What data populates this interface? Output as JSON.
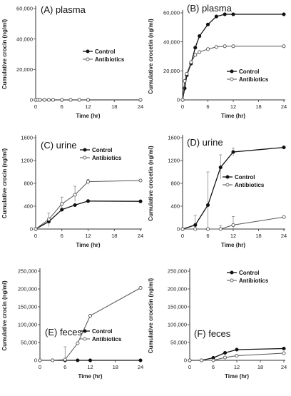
{
  "chart_data": [
    {
      "type": "line",
      "panel_title": "(A) plasma",
      "xlabel": "Time (hr)",
      "ylabel": "Cumulative crocin (ng/ml)",
      "xlim": [
        0,
        24
      ],
      "ylim": [
        0,
        60000
      ],
      "xticks": [
        0,
        6,
        12,
        18,
        24
      ],
      "yticks": [
        0,
        20000,
        40000,
        60000
      ],
      "ytick_labels": [
        "0",
        "20,000",
        "40,000",
        "60,000"
      ],
      "x": [
        0,
        0.5,
        1,
        2,
        3,
        4,
        6,
        8,
        10,
        12,
        24
      ],
      "series": [
        {
          "name": "Control",
          "marker": "filled",
          "values": [
            0,
            0,
            0,
            0,
            0,
            0,
            0,
            0,
            0,
            0,
            0
          ]
        },
        {
          "name": "Antibiotics",
          "marker": "open",
          "values": [
            0,
            0,
            0,
            0,
            0,
            0,
            0,
            0,
            0,
            0,
            0
          ]
        }
      ],
      "errors": [],
      "legend": "middle-right"
    },
    {
      "type": "line",
      "panel_title": "(B) plasma",
      "xlabel": "Time (hr)",
      "ylabel": "Cumulative crocetin (ng/ml)",
      "xlim": [
        0,
        24
      ],
      "ylim": [
        0,
        60000
      ],
      "xticks": [
        0,
        6,
        12,
        18,
        24
      ],
      "yticks": [
        0,
        20000,
        40000,
        60000
      ],
      "ytick_labels": [
        "0",
        "20,000",
        "40,000",
        "60,000"
      ],
      "x": [
        0,
        0.5,
        1,
        2,
        3,
        4,
        6,
        8,
        10,
        12,
        24
      ],
      "series": [
        {
          "name": "Control",
          "marker": "filled",
          "values": [
            0,
            8000,
            17000,
            25000,
            36000,
            44000,
            52000,
            57500,
            59000,
            59000,
            59000
          ]
        },
        {
          "name": "Antibiotics",
          "marker": "open",
          "values": [
            0,
            13000,
            18000,
            26000,
            31000,
            33000,
            35000,
            36500,
            37000,
            37000,
            37000
          ]
        }
      ],
      "errors": [],
      "legend": "right"
    },
    {
      "type": "line",
      "panel_title": "(C) urine",
      "xlabel": "Time (hr)",
      "ylabel": "Cumulative crocin (ng/ml)",
      "xlim": [
        0,
        24
      ],
      "ylim": [
        0,
        1600
      ],
      "xticks": [
        0,
        6,
        12,
        18,
        24
      ],
      "yticks": [
        0,
        400,
        800,
        1200,
        1600
      ],
      "ytick_labels": [
        "0",
        "400",
        "800",
        "1200",
        "1600"
      ],
      "x": [
        0,
        3,
        6,
        9,
        12,
        24
      ],
      "series": [
        {
          "name": "Control",
          "marker": "filled",
          "values": [
            0,
            130,
            340,
            420,
            490,
            485
          ]
        },
        {
          "name": "Antibiotics",
          "marker": "open",
          "values": [
            0,
            170,
            440,
            600,
            830,
            850
          ]
        }
      ],
      "errors": [
        {
          "x": 3,
          "low": 40,
          "high": 280
        },
        {
          "x": 6,
          "low": 300,
          "high": 560
        },
        {
          "x": 9,
          "low": 480,
          "high": 750
        },
        {
          "x": 12,
          "low": 780,
          "high": 870
        }
      ],
      "legend": "top-right"
    },
    {
      "type": "line",
      "panel_title": "(D) urine",
      "xlabel": "Time (hr)",
      "ylabel": "Cumulative crocetin (ng/ml)",
      "xlim": [
        0,
        24
      ],
      "ylim": [
        0,
        1600
      ],
      "xticks": [
        0,
        6,
        12,
        18,
        24
      ],
      "yticks": [
        0,
        400,
        800,
        1200,
        1600
      ],
      "ytick_labels": [
        "0",
        "400",
        "800",
        "1200",
        "1600"
      ],
      "x": [
        0,
        3,
        6,
        9,
        12,
        24
      ],
      "series": [
        {
          "name": "Control",
          "marker": "filled",
          "values": [
            0,
            70,
            420,
            1080,
            1350,
            1430
          ]
        },
        {
          "name": "Antibiotics",
          "marker": "open",
          "values": [
            0,
            0,
            0,
            0,
            70,
            210
          ]
        }
      ],
      "errors": [
        {
          "x": 3,
          "low": 0,
          "high": 240
        },
        {
          "x": 6,
          "low": 0,
          "high": 1000
        },
        {
          "x": 9,
          "low": 870,
          "high": 1300
        },
        {
          "x": 12,
          "low": 1280,
          "high": 1420
        },
        {
          "x": 9,
          "low": 0,
          "high": 60
        },
        {
          "x": 12,
          "low": 0,
          "high": 220
        }
      ],
      "legend": "middle-right"
    },
    {
      "type": "line",
      "panel_title": "(E) feces",
      "xlabel": "Time (hr)",
      "ylabel": "Cumulative crocin (ng/ml)",
      "xlim": [
        0,
        24
      ],
      "ylim": [
        0,
        250000
      ],
      "xticks": [
        0,
        6,
        12,
        18,
        24
      ],
      "yticks": [
        0,
        50000,
        100000,
        150000,
        200000,
        250000
      ],
      "ytick_labels": [
        "0",
        "50,000",
        "100,000",
        "150,000",
        "200,000",
        "250,000"
      ],
      "x": [
        0,
        3,
        6,
        9,
        12,
        24
      ],
      "series": [
        {
          "name": "Control",
          "marker": "filled",
          "values": [
            0,
            0,
            0,
            0,
            0,
            0
          ]
        },
        {
          "name": "Antibiotics",
          "marker": "open",
          "values": [
            0,
            0,
            2000,
            48000,
            125000,
            203000
          ]
        }
      ],
      "errors": [
        {
          "x": 6,
          "low": 0,
          "high": 38000
        }
      ],
      "legend": "middle-right"
    },
    {
      "type": "line",
      "panel_title": "(F) feces",
      "xlabel": "Time (hr)",
      "ylabel": "Cumulative crocetin (ng/ml)",
      "xlim": [
        0,
        24
      ],
      "ylim": [
        0,
        250000
      ],
      "xticks": [
        0,
        6,
        12,
        18,
        24
      ],
      "yticks": [
        0,
        50000,
        100000,
        150000,
        200000,
        250000
      ],
      "ytick_labels": [
        "0",
        "50,000",
        "100,000",
        "150,000",
        "200,000",
        "250,000"
      ],
      "x": [
        0,
        3,
        6,
        9,
        12,
        24
      ],
      "series": [
        {
          "name": "Control",
          "marker": "filled",
          "values": [
            0,
            0,
            7000,
            21000,
            30000,
            33000
          ]
        },
        {
          "name": "Antibiotics",
          "marker": "open",
          "values": [
            0,
            0,
            0,
            8000,
            13000,
            20000
          ]
        }
      ],
      "errors": [],
      "legend": "top-right"
    }
  ]
}
